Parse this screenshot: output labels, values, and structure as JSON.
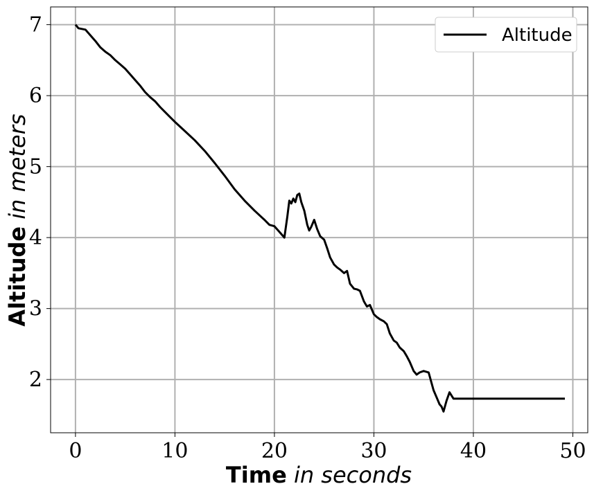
{
  "chart_data": {
    "type": "line",
    "xlabel_bold": "Time",
    "xlabel_italic": "in seconds",
    "ylabel_bold": "Altitude",
    "ylabel_italic": "in meters",
    "xlim": [
      -2.5,
      51.5
    ],
    "ylim": [
      1.25,
      7.25
    ],
    "x_ticks": [
      0,
      10,
      20,
      30,
      40,
      50
    ],
    "y_ticks": [
      2,
      3,
      4,
      5,
      6,
      7
    ],
    "grid": true,
    "legend_position": "top-right",
    "series": [
      {
        "name": "Altitude",
        "color": "#000000",
        "x": [
          0,
          0.3,
          1.0,
          1.5,
          2.0,
          2.5,
          3.0,
          3.5,
          4.0,
          4.5,
          5.0,
          5.5,
          6.0,
          6.5,
          7.0,
          7.5,
          8.0,
          8.5,
          9.0,
          9.5,
          10.0,
          11.0,
          12.0,
          13.0,
          14.0,
          15.0,
          16.0,
          17.0,
          18.0,
          19.0,
          19.5,
          20.0,
          20.5,
          21.0,
          21.3,
          21.5,
          21.7,
          21.9,
          22.1,
          22.3,
          22.5,
          22.7,
          23.0,
          23.3,
          23.5,
          23.7,
          24.0,
          24.3,
          24.6,
          25.0,
          25.3,
          25.6,
          26.0,
          26.3,
          26.6,
          27.0,
          27.3,
          27.6,
          28.0,
          28.3,
          28.6,
          29.0,
          29.3,
          29.6,
          30.0,
          30.3,
          30.6,
          31.0,
          31.3,
          31.6,
          32.0,
          32.3,
          32.6,
          33.0,
          33.3,
          33.6,
          34.0,
          34.3,
          34.6,
          35.0,
          35.5,
          36.0,
          36.3,
          36.6,
          36.8,
          37.0,
          37.3,
          37.6,
          38.0,
          39.0,
          40.0,
          41.0,
          42.0,
          43.0,
          44.0,
          45.0,
          46.0,
          47.0,
          48.0,
          49.2
        ],
        "y": [
          7.0,
          6.95,
          6.93,
          6.85,
          6.77,
          6.68,
          6.62,
          6.57,
          6.5,
          6.44,
          6.38,
          6.3,
          6.22,
          6.14,
          6.05,
          5.98,
          5.92,
          5.84,
          5.77,
          5.7,
          5.63,
          5.5,
          5.37,
          5.22,
          5.05,
          4.87,
          4.68,
          4.52,
          4.38,
          4.25,
          4.18,
          4.16,
          4.08,
          4.0,
          4.3,
          4.52,
          4.48,
          4.55,
          4.5,
          4.6,
          4.62,
          4.5,
          4.38,
          4.18,
          4.1,
          4.15,
          4.25,
          4.12,
          4.02,
          3.97,
          3.85,
          3.72,
          3.62,
          3.58,
          3.55,
          3.5,
          3.53,
          3.35,
          3.28,
          3.27,
          3.25,
          3.1,
          3.03,
          3.05,
          2.92,
          2.88,
          2.85,
          2.82,
          2.78,
          2.65,
          2.55,
          2.52,
          2.45,
          2.4,
          2.33,
          2.25,
          2.12,
          2.07,
          2.1,
          2.12,
          2.1,
          1.85,
          1.75,
          1.65,
          1.62,
          1.55,
          1.7,
          1.82,
          1.73,
          1.73,
          1.73,
          1.73,
          1.73,
          1.73,
          1.73,
          1.73,
          1.73,
          1.73,
          1.73,
          1.73
        ]
      }
    ]
  }
}
